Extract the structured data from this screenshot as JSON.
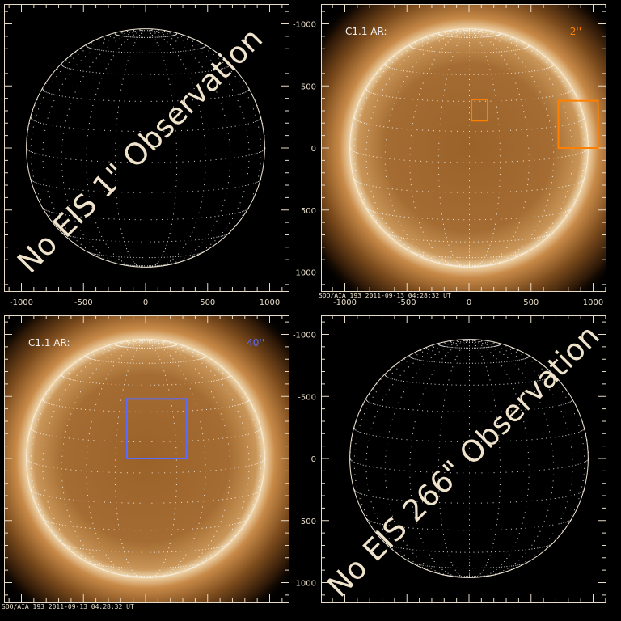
{
  "panels": [
    {
      "id": "tl",
      "has_image": false,
      "message": "No EIS 1\" Observation",
      "show_x_labels": true,
      "show_y_labels": false
    },
    {
      "id": "tr",
      "has_image": true,
      "ar_label": "C1.1 AR:",
      "ar_value": "2''",
      "box_color": "#ff8000",
      "stamp": "SDO/AIA 193  2011-09-13 04:28:32 UT",
      "show_x_labels": true,
      "show_y_labels": true,
      "boxes_arcsec": [
        [
          20,
          220,
          150,
          390
        ],
        [
          720,
          0,
          1040,
          380
        ]
      ]
    },
    {
      "id": "bl",
      "has_image": true,
      "ar_label": "C1.1 AR:",
      "ar_value": "40''",
      "box_color": "#5b6bff",
      "stamp": "SDO/AIA 193  2011-09-13 04:28:32 UT",
      "show_x_labels": false,
      "show_y_labels": false,
      "boxes_arcsec": [
        [
          -150,
          0,
          330,
          480
        ]
      ]
    },
    {
      "id": "br",
      "has_image": false,
      "message": "No EIS 266\" Observation",
      "show_x_labels": false,
      "show_y_labels": true
    }
  ],
  "axes": {
    "x_ticks": [
      "-1000",
      "-500",
      "0",
      "500",
      "1000"
    ],
    "y_ticks": [
      "1000",
      "500",
      "0",
      "-500",
      "-1000"
    ],
    "range_arcsec": [
      -1150,
      1150
    ]
  },
  "colors": {
    "label": "#e8dcc8",
    "grid": "#ffffff",
    "limb": "#f5ead8"
  }
}
